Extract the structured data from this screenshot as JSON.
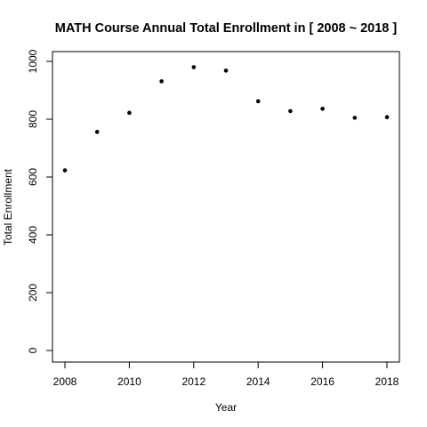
{
  "chart_data": {
    "type": "scatter",
    "title": "MATH Course Annual Total Enrollment in [ 2008 ~ 2018 ]",
    "xlabel": "Year",
    "ylabel": "Total Enrollment",
    "x": [
      2008,
      2009,
      2010,
      2011,
      2012,
      2013,
      2014,
      2015,
      2016,
      2017,
      2018
    ],
    "series": [
      {
        "values": [
          623,
          756,
          822,
          931,
          980,
          968,
          862,
          828,
          836,
          805,
          807
        ]
      }
    ],
    "xlim": [
      2008,
      2018
    ],
    "ylim": [
      0,
      1000
    ],
    "x_ticks": [
      "2008",
      "2010",
      "2012",
      "2014",
      "2016",
      "2018"
    ],
    "y_ticks": [
      "0",
      "200",
      "400",
      "600",
      "800",
      "1000"
    ],
    "grid": false,
    "legend": "none",
    "colors": {
      "point": "#000000",
      "axis": "#000000",
      "background": "#ffffff"
    }
  }
}
